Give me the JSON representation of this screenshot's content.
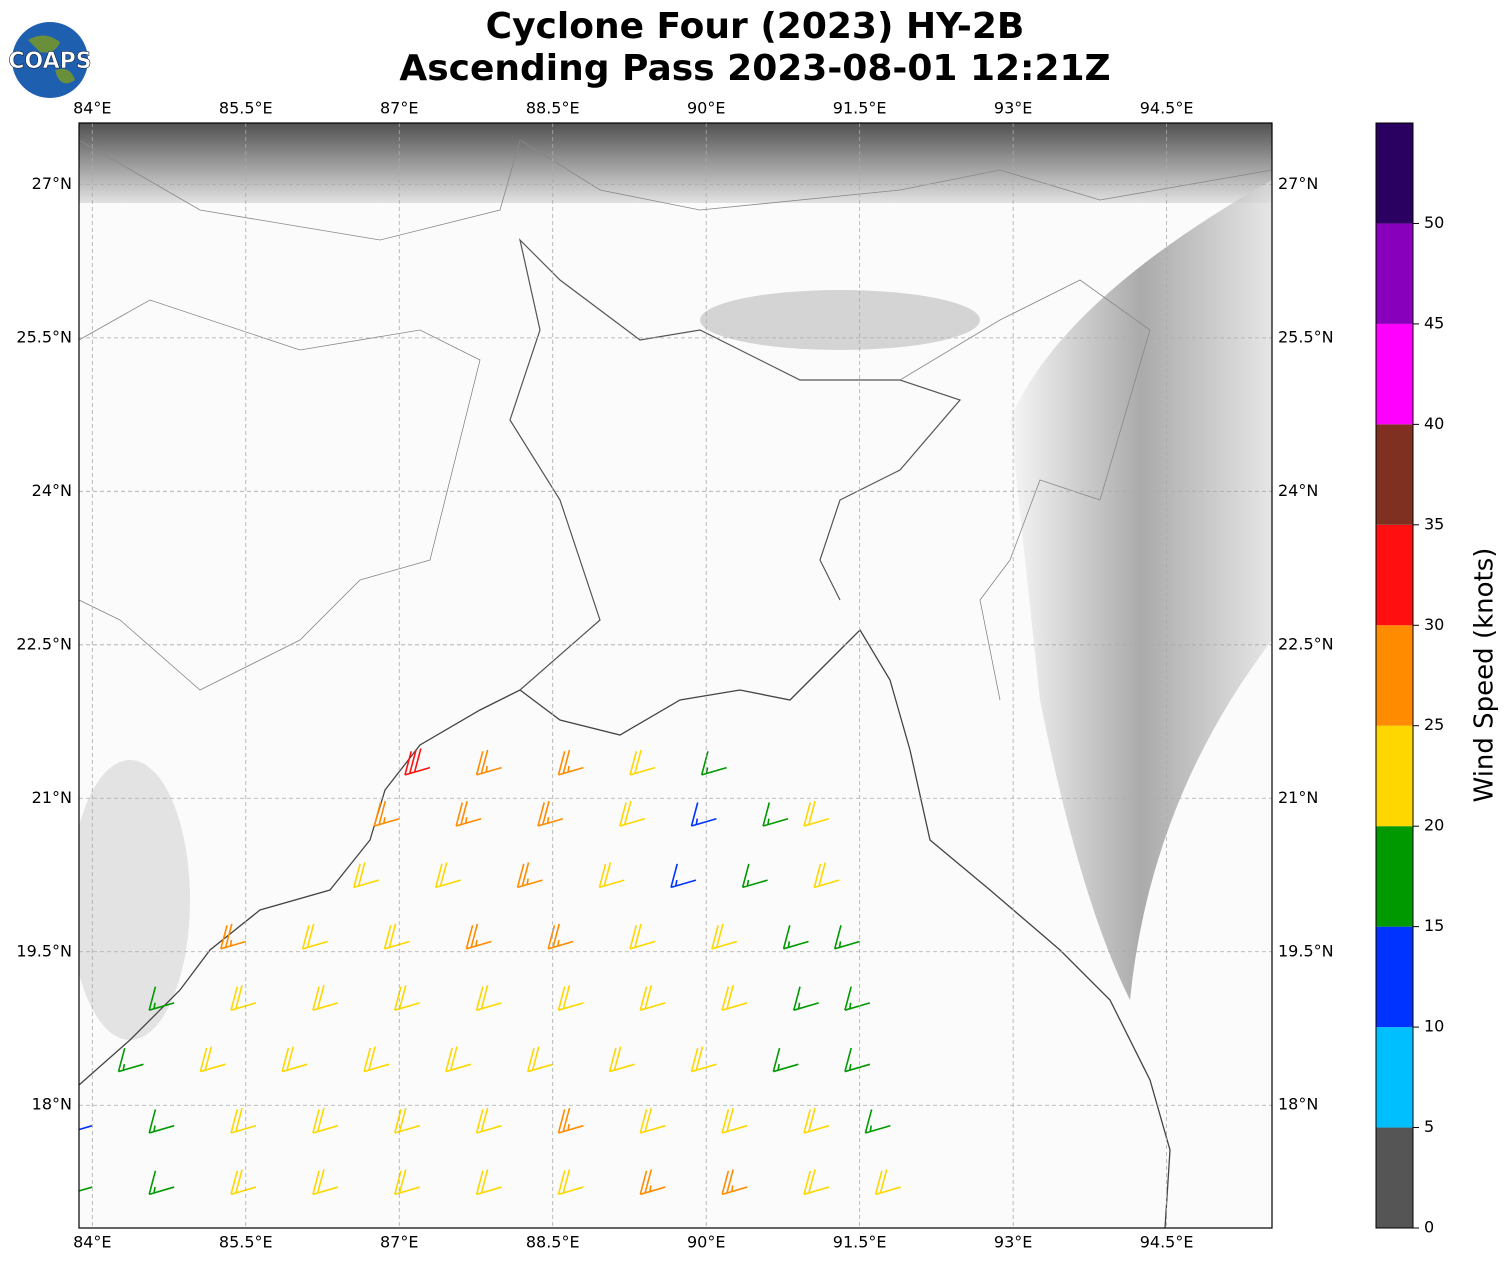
{
  "chart_data": {
    "type": "wind-barb-map",
    "title": "Cyclone Four (2023) HY-2B",
    "subtitle": "Ascending Pass 2023-08-01 12:21Z",
    "logo_text": "COAPS",
    "xlim": [
      83.87,
      95.53
    ],
    "ylim": [
      16.8,
      27.6
    ],
    "xticks": [
      {
        "value": 84,
        "label": "84°E"
      },
      {
        "value": 85.5,
        "label": "85.5°E"
      },
      {
        "value": 87,
        "label": "87°E"
      },
      {
        "value": 88.5,
        "label": "88.5°E"
      },
      {
        "value": 90,
        "label": "90°E"
      },
      {
        "value": 91.5,
        "label": "91.5°E"
      },
      {
        "value": 93,
        "label": "93°E"
      },
      {
        "value": 94.5,
        "label": "94.5°E"
      }
    ],
    "yticks": [
      {
        "value": 18,
        "label": "18°N"
      },
      {
        "value": 19.5,
        "label": "19.5°N"
      },
      {
        "value": 21,
        "label": "21°N"
      },
      {
        "value": 22.5,
        "label": "22.5°N"
      },
      {
        "value": 24,
        "label": "24°N"
      },
      {
        "value": 25.5,
        "label": "25.5°N"
      },
      {
        "value": 27,
        "label": "27°N"
      }
    ],
    "grid": true,
    "colorbar": {
      "label": "Wind Speed (knots)",
      "lim": [
        0,
        55
      ],
      "ticks": [
        0,
        5,
        10,
        15,
        20,
        25,
        30,
        35,
        40,
        45,
        50
      ],
      "colors": [
        "#555555",
        "#00bfff",
        "#0033ff",
        "#009900",
        "#ffd700",
        "#ff8c00",
        "#ff0f0f",
        "#803020",
        "#ff00ff",
        "#8800bb",
        "#2a0060"
      ]
    },
    "barbs": [
      [
        87.3,
        21.3,
        32
      ],
      [
        88.0,
        21.3,
        27
      ],
      [
        88.8,
        21.3,
        27
      ],
      [
        89.5,
        21.3,
        22
      ],
      [
        90.2,
        21.3,
        17
      ],
      [
        87.0,
        20.8,
        27
      ],
      [
        87.8,
        20.8,
        27
      ],
      [
        88.6,
        20.8,
        27
      ],
      [
        89.4,
        20.8,
        22
      ],
      [
        90.1,
        20.8,
        13
      ],
      [
        90.8,
        20.8,
        17
      ],
      [
        91.2,
        20.8,
        22
      ],
      [
        86.8,
        20.2,
        22
      ],
      [
        87.6,
        20.2,
        22
      ],
      [
        88.4,
        20.2,
        27
      ],
      [
        89.2,
        20.2,
        22
      ],
      [
        89.9,
        20.2,
        13
      ],
      [
        90.6,
        20.2,
        17
      ],
      [
        91.3,
        20.2,
        22
      ],
      [
        85.5,
        19.6,
        27
      ],
      [
        86.3,
        19.6,
        22
      ],
      [
        87.1,
        19.6,
        22
      ],
      [
        87.9,
        19.6,
        27
      ],
      [
        88.7,
        19.6,
        27
      ],
      [
        89.5,
        19.6,
        22
      ],
      [
        90.3,
        19.6,
        22
      ],
      [
        91.0,
        19.6,
        17
      ],
      [
        91.5,
        19.6,
        17
      ],
      [
        84.8,
        19.0,
        17
      ],
      [
        85.6,
        19.0,
        22
      ],
      [
        86.4,
        19.0,
        22
      ],
      [
        87.2,
        19.0,
        22
      ],
      [
        88.0,
        19.0,
        22
      ],
      [
        88.8,
        19.0,
        22
      ],
      [
        89.6,
        19.0,
        22
      ],
      [
        90.4,
        19.0,
        22
      ],
      [
        91.1,
        19.0,
        17
      ],
      [
        91.6,
        19.0,
        17
      ],
      [
        84.5,
        18.4,
        17
      ],
      [
        85.3,
        18.4,
        22
      ],
      [
        86.1,
        18.4,
        22
      ],
      [
        86.9,
        18.4,
        22
      ],
      [
        87.7,
        18.4,
        22
      ],
      [
        88.5,
        18.4,
        22
      ],
      [
        89.3,
        18.4,
        22
      ],
      [
        90.1,
        18.4,
        22
      ],
      [
        90.9,
        18.4,
        17
      ],
      [
        91.6,
        18.4,
        17
      ],
      [
        84.0,
        17.8,
        13
      ],
      [
        84.8,
        17.8,
        17
      ],
      [
        85.6,
        17.8,
        22
      ],
      [
        86.4,
        17.8,
        22
      ],
      [
        87.2,
        17.8,
        22
      ],
      [
        88.0,
        17.8,
        22
      ],
      [
        88.8,
        17.8,
        27
      ],
      [
        89.6,
        17.8,
        22
      ],
      [
        90.4,
        17.8,
        22
      ],
      [
        91.2,
        17.8,
        22
      ],
      [
        91.8,
        17.8,
        17
      ],
      [
        84.0,
        17.2,
        17
      ],
      [
        84.8,
        17.2,
        17
      ],
      [
        85.6,
        17.2,
        22
      ],
      [
        86.4,
        17.2,
        22
      ],
      [
        87.2,
        17.2,
        22
      ],
      [
        88.0,
        17.2,
        22
      ],
      [
        88.8,
        17.2,
        22
      ],
      [
        89.6,
        17.2,
        27
      ],
      [
        90.4,
        17.2,
        27
      ],
      [
        91.2,
        17.2,
        22
      ],
      [
        91.9,
        17.2,
        22
      ]
    ]
  }
}
